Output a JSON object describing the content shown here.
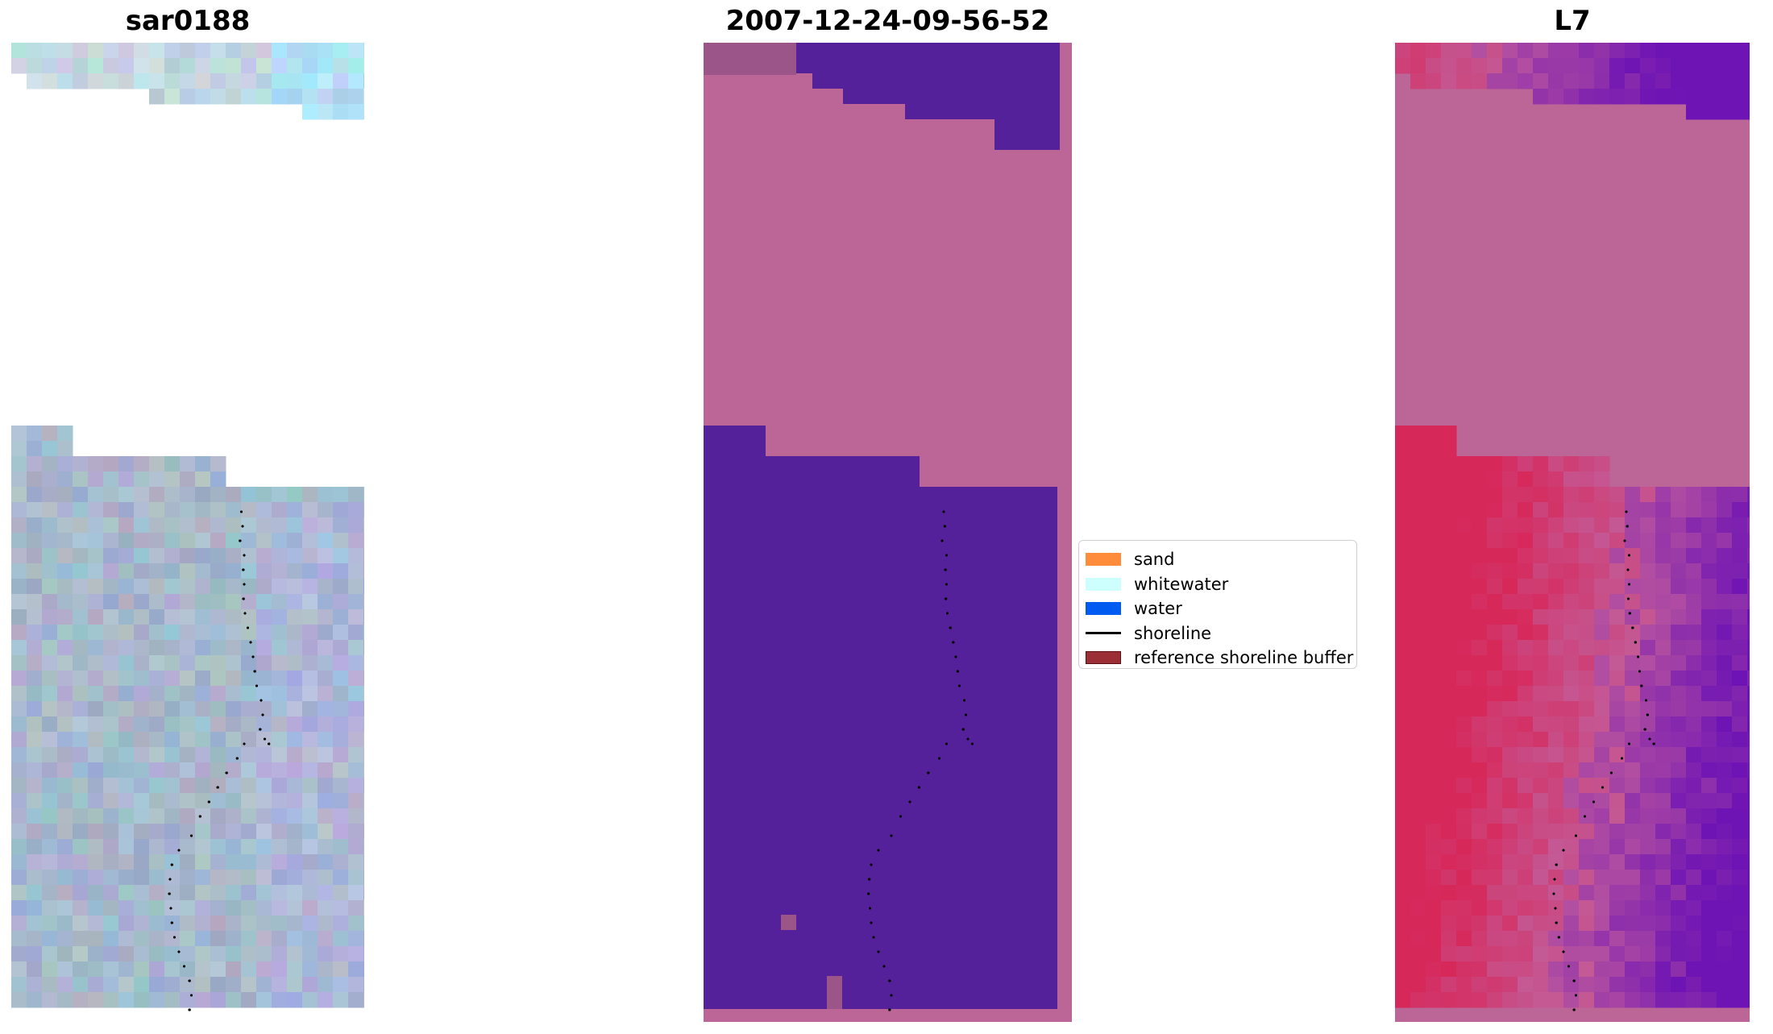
{
  "panels": [
    {
      "title": "sar0188",
      "kind": "rgb"
    },
    {
      "title": "2007-12-24-09-56-52",
      "kind": "classified"
    },
    {
      "title": "L7",
      "kind": "index"
    }
  ],
  "legend": {
    "items": [
      {
        "label": "sand",
        "type": "patch",
        "color": "#ff8c3a"
      },
      {
        "label": "whitewater",
        "type": "patch",
        "color": "#ccfffd"
      },
      {
        "label": "water",
        "type": "patch",
        "color": "#005cf0"
      },
      {
        "label": "shoreline",
        "type": "line",
        "color": "#000000"
      },
      {
        "label": "reference shoreline buffer",
        "type": "patch",
        "color": "#9b2f35",
        "edge": "#5b1014"
      }
    ]
  },
  "colors": {
    "no_data_pink": "#bb6696",
    "water_purple": "#54219a",
    "sand_mauve": "#9c5588",
    "rgb_base": "#a6b8cc",
    "index_dark": "#7a22a8",
    "index_red": "#c8204e",
    "shoreline": "#000000"
  }
}
